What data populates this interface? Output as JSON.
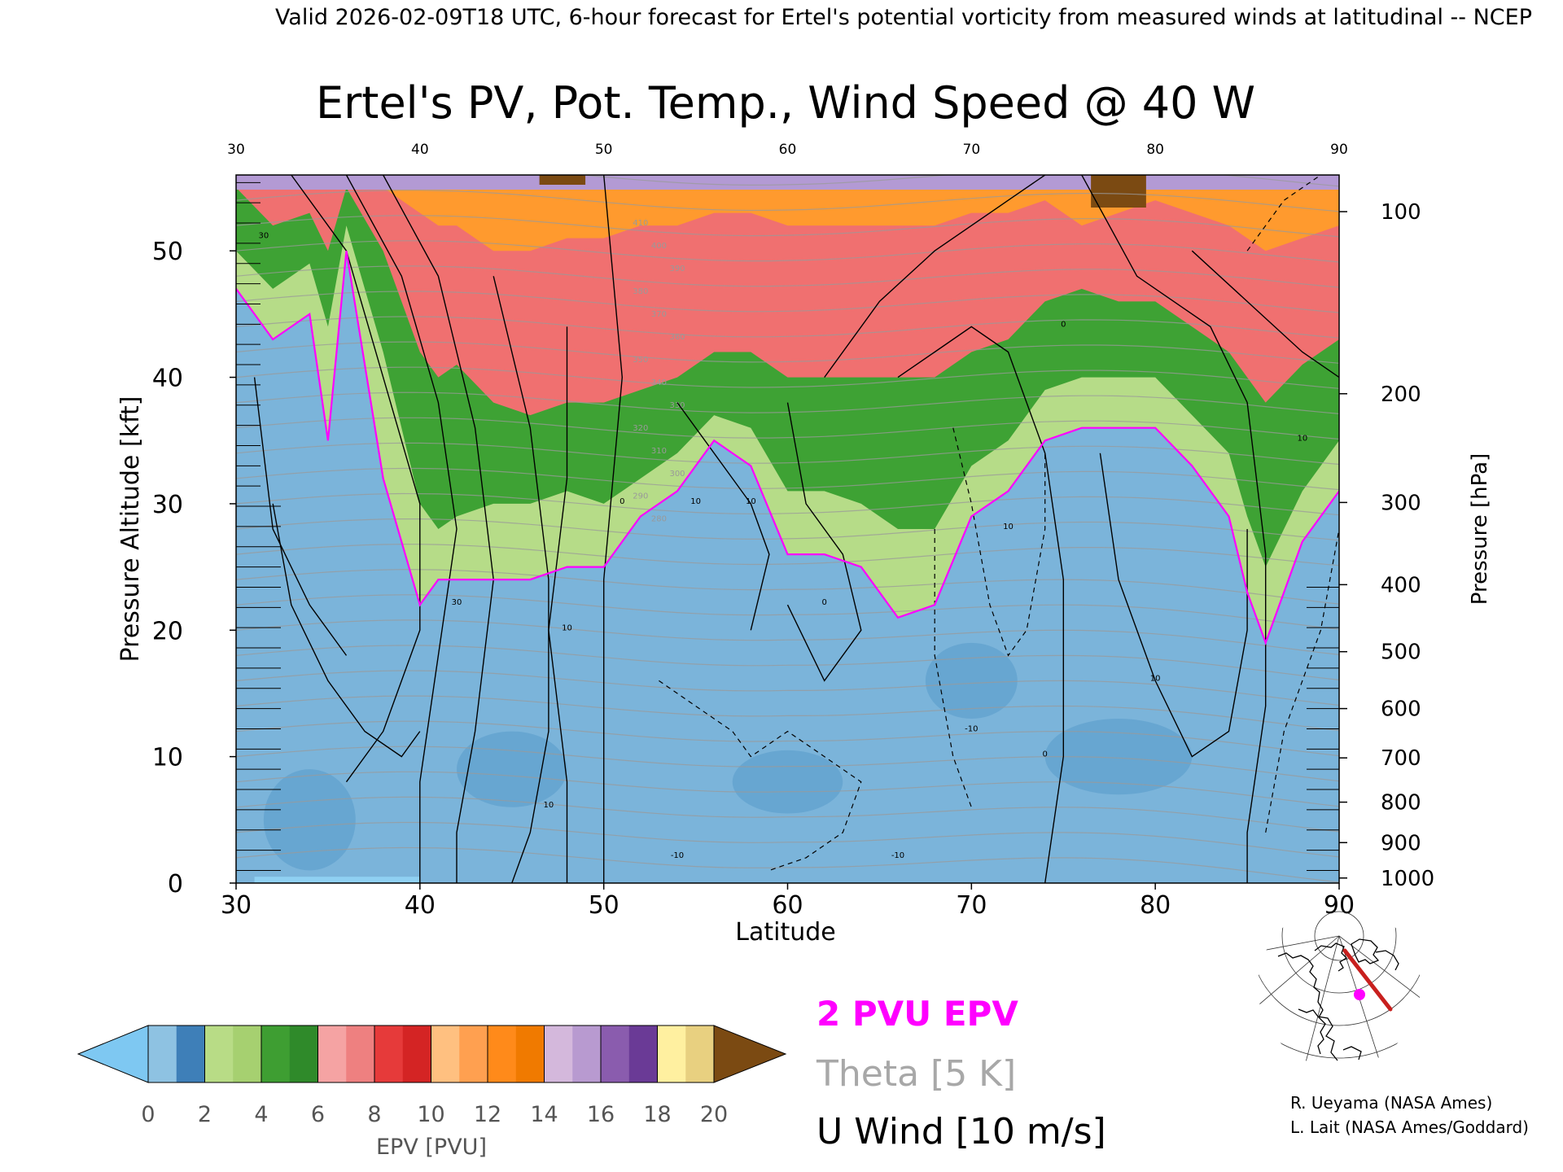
{
  "header": {
    "valid_line": "Valid 2026-02-09T18 UTC, 6-hour forecast for Ertel's potential vorticity from measured winds at latitudinal -- NCEP"
  },
  "chart_data": {
    "type": "heatmap",
    "title": "Ertel's PV, Pot. Temp., Wind Speed @ 40 W",
    "xlabel": "Latitude",
    "ylabel": "Pressure Altitude [kft]",
    "y2label": "Pressure [hPa]",
    "xlim": [
      30,
      90
    ],
    "ylim": [
      0,
      56
    ],
    "x_ticks": [
      30,
      40,
      50,
      60,
      70,
      80,
      90
    ],
    "y_ticks": [
      0,
      10,
      20,
      30,
      40,
      50
    ],
    "pressure_ticks": [
      {
        "hpa": "100",
        "kft": 53.1
      },
      {
        "hpa": "200",
        "kft": 38.7
      },
      {
        "hpa": "300",
        "kft": 30.1
      },
      {
        "hpa": "400",
        "kft": 23.6
      },
      {
        "hpa": "500",
        "kft": 18.3
      },
      {
        "hpa": "600",
        "kft": 13.8
      },
      {
        "hpa": "700",
        "kft": 9.9
      },
      {
        "hpa": "800",
        "kft": 6.4
      },
      {
        "hpa": "900",
        "kft": 3.2
      },
      {
        "hpa": "1000",
        "kft": 0.4
      }
    ],
    "grid": false,
    "colorbar": {
      "label": "EPV [PVU]",
      "ticks": [
        "0",
        "2",
        "4",
        "6",
        "8",
        "10",
        "12",
        "14",
        "16",
        "18",
        "20"
      ],
      "min": 0,
      "max": 20,
      "under_color": "#7ec8f2",
      "over_color": "#7b4a12",
      "colors": [
        "#8ec2e2",
        "#3e7fb8",
        "#b8dc86",
        "#a6d070",
        "#3e9e32",
        "#2f8a2a",
        "#f5a3a3",
        "#ee8080",
        "#e63a3a",
        "#d42424",
        "#ffc080",
        "#ffa050",
        "#ff8a1a",
        "#f07a00",
        "#d4b8dc",
        "#b89ad0",
        "#8a5cae",
        "#6a3a96",
        "#fff0a0",
        "#e8d080"
      ]
    },
    "epv_profile": {
      "description_levels_kft": "approximate altitude of EPV thresholds along latitude",
      "latitude": [
        30,
        32,
        34,
        35,
        36,
        38,
        40,
        41,
        42,
        44,
        46,
        48,
        50,
        52,
        54,
        56,
        58,
        60,
        62,
        64,
        66,
        68,
        70,
        72,
        74,
        76,
        78,
        80,
        82,
        84,
        85,
        86,
        88,
        90
      ],
      "pv2_kft": [
        47,
        43,
        45,
        35,
        50,
        32,
        22,
        24,
        24,
        24,
        24,
        25,
        25,
        29,
        31,
        35,
        33,
        26,
        26,
        25,
        21,
        22,
        29,
        31,
        35,
        36,
        36,
        36,
        33,
        29,
        23,
        19,
        27,
        31
      ],
      "pv6_kft": [
        50,
        47,
        49,
        44,
        52,
        42,
        30,
        28,
        29,
        30,
        30,
        31,
        30,
        32,
        34,
        37,
        36,
        31,
        31,
        30,
        28,
        28,
        33,
        35,
        39,
        40,
        40,
        40,
        37,
        34,
        29,
        25,
        31,
        35
      ],
      "pv10_kft": [
        55,
        52,
        53,
        50,
        55,
        50,
        42,
        40,
        41,
        38,
        37,
        38,
        38,
        39,
        40,
        42,
        42,
        40,
        40,
        40,
        40,
        40,
        42,
        43,
        46,
        47,
        46,
        46,
        44,
        42,
        40,
        38,
        41,
        43
      ],
      "pv14_kft": [
        56,
        55,
        56,
        55,
        56,
        55,
        53,
        52,
        52,
        50,
        50,
        51,
        51,
        52,
        52,
        53,
        53,
        52,
        52,
        52,
        52,
        52,
        53,
        53,
        54,
        52,
        53,
        54,
        53,
        52,
        51,
        50,
        51,
        52
      ]
    },
    "theta_contours": {
      "label": "Theta [5 K]",
      "color": "#9a9a9a",
      "labels": [
        "410",
        "400",
        "390",
        "380",
        "370",
        "360",
        "350",
        "340",
        "330",
        "320",
        "310",
        "300",
        "290",
        "280"
      ]
    },
    "u_wind_contours": {
      "label": "U Wind [10 m/s]",
      "color": "#000000",
      "labels": [
        "30",
        "10",
        "0",
        "-10"
      ]
    },
    "legend": {
      "items": [
        {
          "text": "2 PVU EPV",
          "color": "#ff00ff"
        },
        {
          "text": "Theta [5 K]",
          "color": "#a8a8a8"
        },
        {
          "text": "U Wind [10 m/s]",
          "color": "#000000"
        }
      ],
      "placement": "bottom-center"
    },
    "inset_map": {
      "track_color": "#c8201e",
      "marker_color": "#ff00ff"
    }
  },
  "credits": [
    "R. Ueyama (NASA Ames)",
    "L. Lait (NASA Ames/Goddard)"
  ]
}
